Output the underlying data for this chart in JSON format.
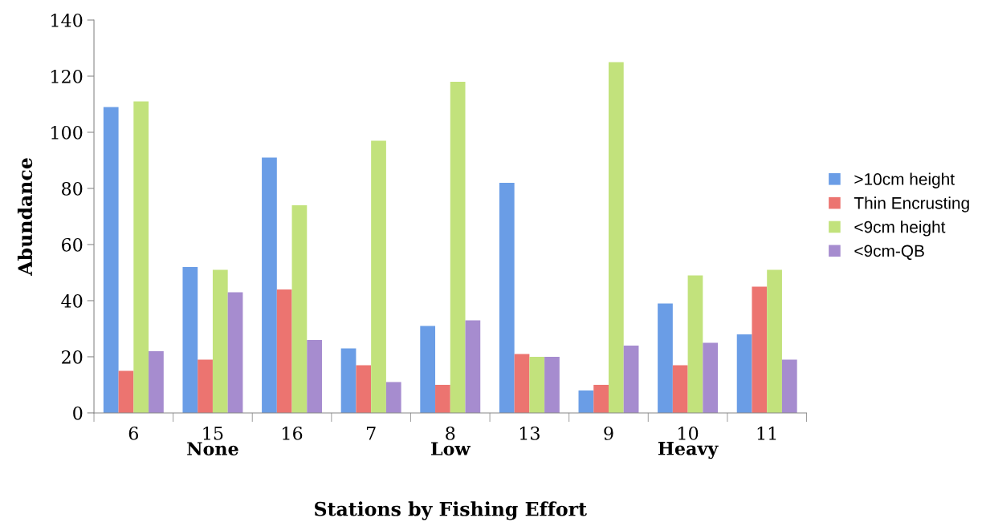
{
  "chart_data": {
    "type": "bar",
    "xlabel": "Stations by Fishing Effort",
    "ylabel": "Abundance",
    "categories": [
      "6",
      "15",
      "16",
      "7",
      "8",
      "13",
      "9",
      "10",
      "11"
    ],
    "series": [
      {
        "name": ">10cm height",
        "color": "#6a9de6",
        "values": [
          109,
          52,
          91,
          23,
          31,
          82,
          8,
          39,
          28
        ]
      },
      {
        "name": "Thin Encrusting",
        "color": "#ec7470",
        "values": [
          15,
          19,
          44,
          17,
          10,
          21,
          10,
          17,
          45
        ]
      },
      {
        "name": "<9cm height",
        "color": "#c2e27c",
        "values": [
          111,
          51,
          74,
          97,
          118,
          20,
          125,
          49,
          51
        ]
      },
      {
        "name": "<9cm-QB",
        "color": "#a68ccf",
        "values": [
          22,
          43,
          26,
          11,
          33,
          20,
          24,
          25,
          19
        ]
      }
    ],
    "annotations": [
      "None",
      "Low",
      "Heavy"
    ],
    "ylim": [
      0,
      140
    ],
    "yticks": [
      0,
      20,
      40,
      60,
      80,
      100,
      120,
      140
    ],
    "grid": false,
    "legend": "right"
  }
}
